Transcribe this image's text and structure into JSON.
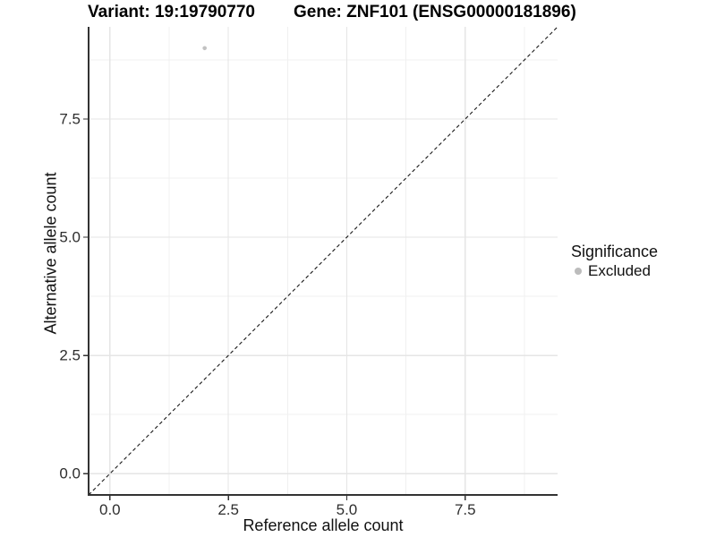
{
  "chart_data": {
    "type": "scatter",
    "titles": {
      "variant": "Variant: 19:19790770",
      "gene": "Gene: ZNF101 (ENSG00000181896)"
    },
    "xlabel": "Reference allele count",
    "ylabel": "Alternative allele count",
    "x_ticks": {
      "values": [
        0,
        2.5,
        5,
        7.5
      ],
      "labels": [
        "0.0",
        "2.5",
        "5.0",
        "7.5"
      ]
    },
    "y_ticks": {
      "values": [
        0,
        2.5,
        5,
        7.5
      ],
      "labels": [
        "0.0",
        "2.5",
        "5.0",
        "7.5"
      ]
    },
    "x_domain": [
      -0.45,
      9.45
    ],
    "y_domain": [
      -0.45,
      9.45
    ],
    "minor_gridlines": [
      1.25,
      3.75,
      6.25,
      8.75
    ],
    "grid": "major+minor",
    "points": [
      {
        "x": 2,
        "y": 9,
        "series": "Excluded"
      }
    ],
    "reference_line": {
      "type": "identity",
      "slope": 1,
      "intercept": 0,
      "style": "dashed"
    },
    "legend": {
      "title": "Significance",
      "position": "right",
      "items": [
        {
          "label": "Excluded",
          "color": "#bcbcbc"
        }
      ]
    }
  },
  "colors": {
    "background": "#ffffff",
    "axis_line": "#333333",
    "tick_mark": "#333333",
    "tick_label": "#2e2e2e",
    "major_grid": "#e5e5e5",
    "minor_grid": "#f0f0f0",
    "point": "#c2c2c2",
    "reference_line": "#1a1a1a"
  }
}
